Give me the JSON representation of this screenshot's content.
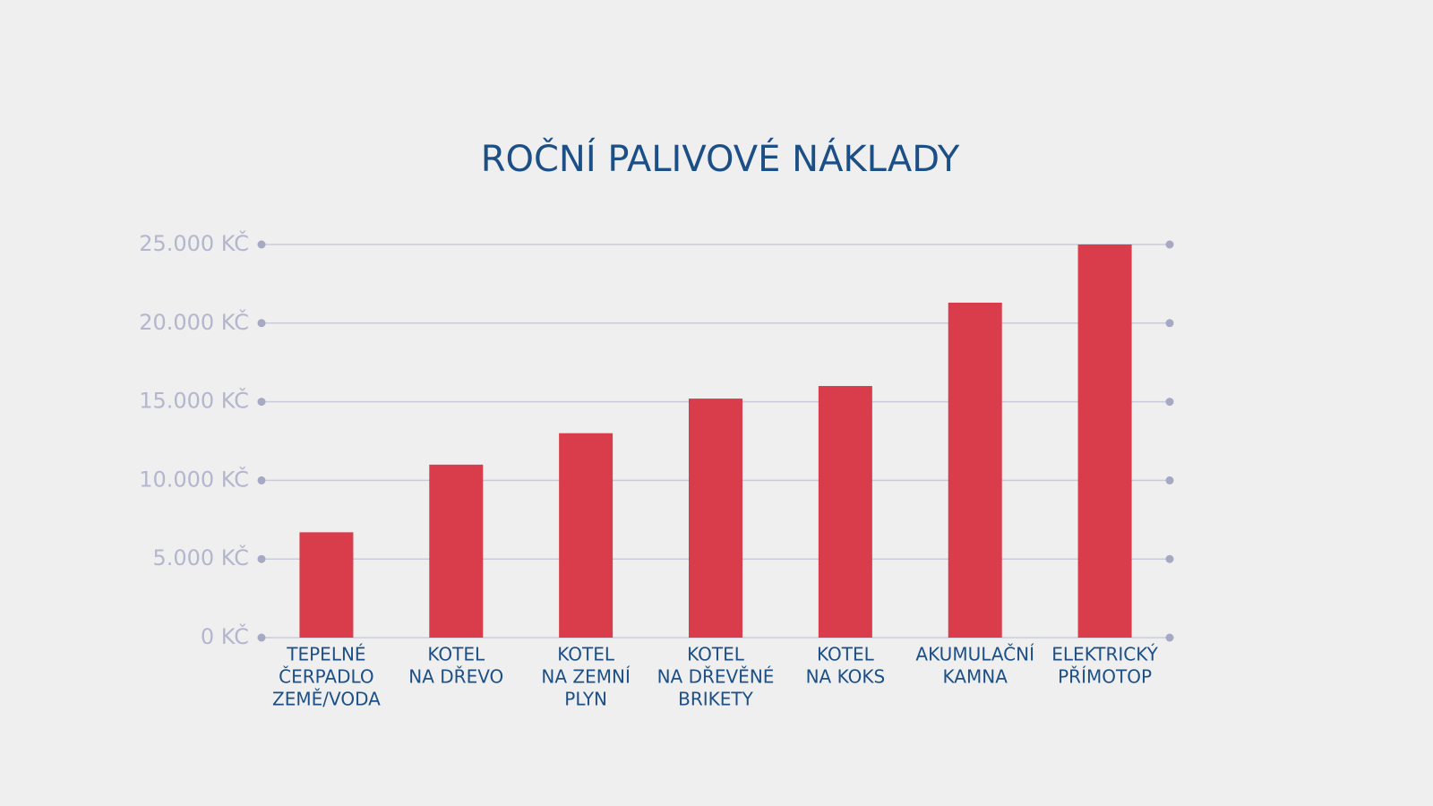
{
  "chart_data": {
    "type": "bar",
    "title": "ROČNÍ PALIVOVÉ NÁKLADY",
    "categories": [
      [
        "TEPELNÉ",
        "ČERPADLO",
        "ZEMĚ/VODA"
      ],
      [
        "KOTEL",
        "NA DŘEVO"
      ],
      [
        "KOTEL",
        "NA ZEMNÍ",
        "PLYN"
      ],
      [
        "KOTEL",
        "NA DŘEVĚNÉ",
        "BRIKETY"
      ],
      [
        "KOTEL",
        "NA KOKS"
      ],
      [
        "AKUMULAČNÍ",
        "KAMNA"
      ],
      [
        "ELEKTRICKÝ",
        "PŘÍMOTOP"
      ]
    ],
    "values": [
      6700,
      11000,
      13000,
      15200,
      16000,
      21300,
      25000
    ],
    "color": "#d93c4b",
    "ylim": [
      0,
      25000
    ],
    "yticks": [
      {
        "value": 0,
        "label": "0 KČ"
      },
      {
        "value": 5000,
        "label": "5.000 KČ"
      },
      {
        "value": 10000,
        "label": "10.000 KČ"
      },
      {
        "value": 15000,
        "label": "15.000 KČ"
      },
      {
        "value": 20000,
        "label": "20.000 KČ"
      },
      {
        "value": 25000,
        "label": "25.000 KČ"
      }
    ],
    "grid": true
  }
}
